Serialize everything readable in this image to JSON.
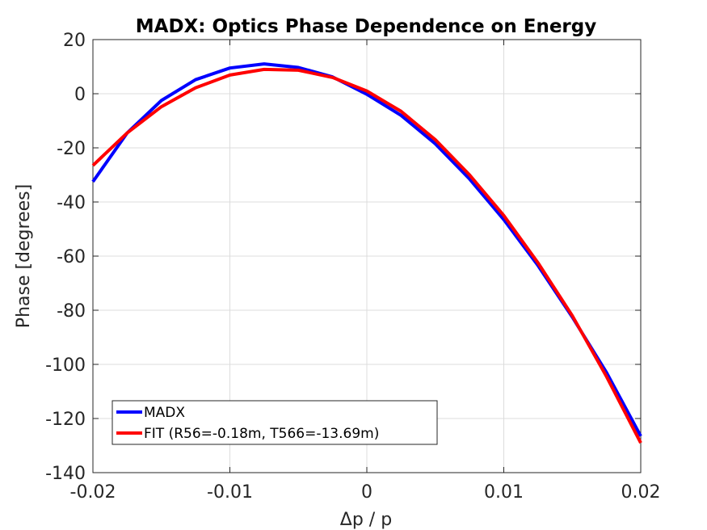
{
  "chart_data": {
    "type": "line",
    "title": "MADX: Optics Phase Dependence on Energy",
    "xlabel": "Δp / p",
    "ylabel": "Phase [degrees]",
    "xlim": [
      -0.02,
      0.02
    ],
    "ylim": [
      -140,
      20
    ],
    "xticks": [
      -0.02,
      -0.01,
      0,
      0.01,
      0.02
    ],
    "xtick_labels": [
      "-0.02",
      "-0.01",
      "0",
      "0.01",
      "0.02"
    ],
    "yticks": [
      -140,
      -120,
      -100,
      -80,
      -60,
      -40,
      -20,
      0,
      20
    ],
    "ytick_labels": [
      "-140",
      "-120",
      "-100",
      "-80",
      "-60",
      "-40",
      "-20",
      "0",
      "20"
    ],
    "grid": true,
    "legend_position": "bottom-left",
    "x": [
      -0.02,
      -0.0175,
      -0.015,
      -0.0125,
      -0.01,
      -0.0075,
      -0.005,
      -0.0025,
      0,
      0.0025,
      0.005,
      0.0075,
      0.01,
      0.0125,
      0.015,
      0.0175,
      0.02
    ],
    "series": [
      {
        "name": "MADX",
        "color": "#0000ff",
        "values": [
          -32.5,
          -14.5,
          -2.5,
          5.2,
          9.5,
          11.0,
          9.7,
          6.2,
          -0.2,
          -8.0,
          -18.5,
          -31.5,
          -46.5,
          -63.5,
          -82.5,
          -103.0,
          -126.5
        ]
      },
      {
        "name": "FIT (R56=-0.18m, T566=-13.69m)",
        "color": "#ff0000",
        "values": [
          -26.5,
          -14.5,
          -4.8,
          2.2,
          6.9,
          9.0,
          8.7,
          6.0,
          1.0,
          -6.5,
          -17.0,
          -30.0,
          -45.0,
          -62.5,
          -82.0,
          -104.5,
          -129.0
        ]
      }
    ]
  }
}
